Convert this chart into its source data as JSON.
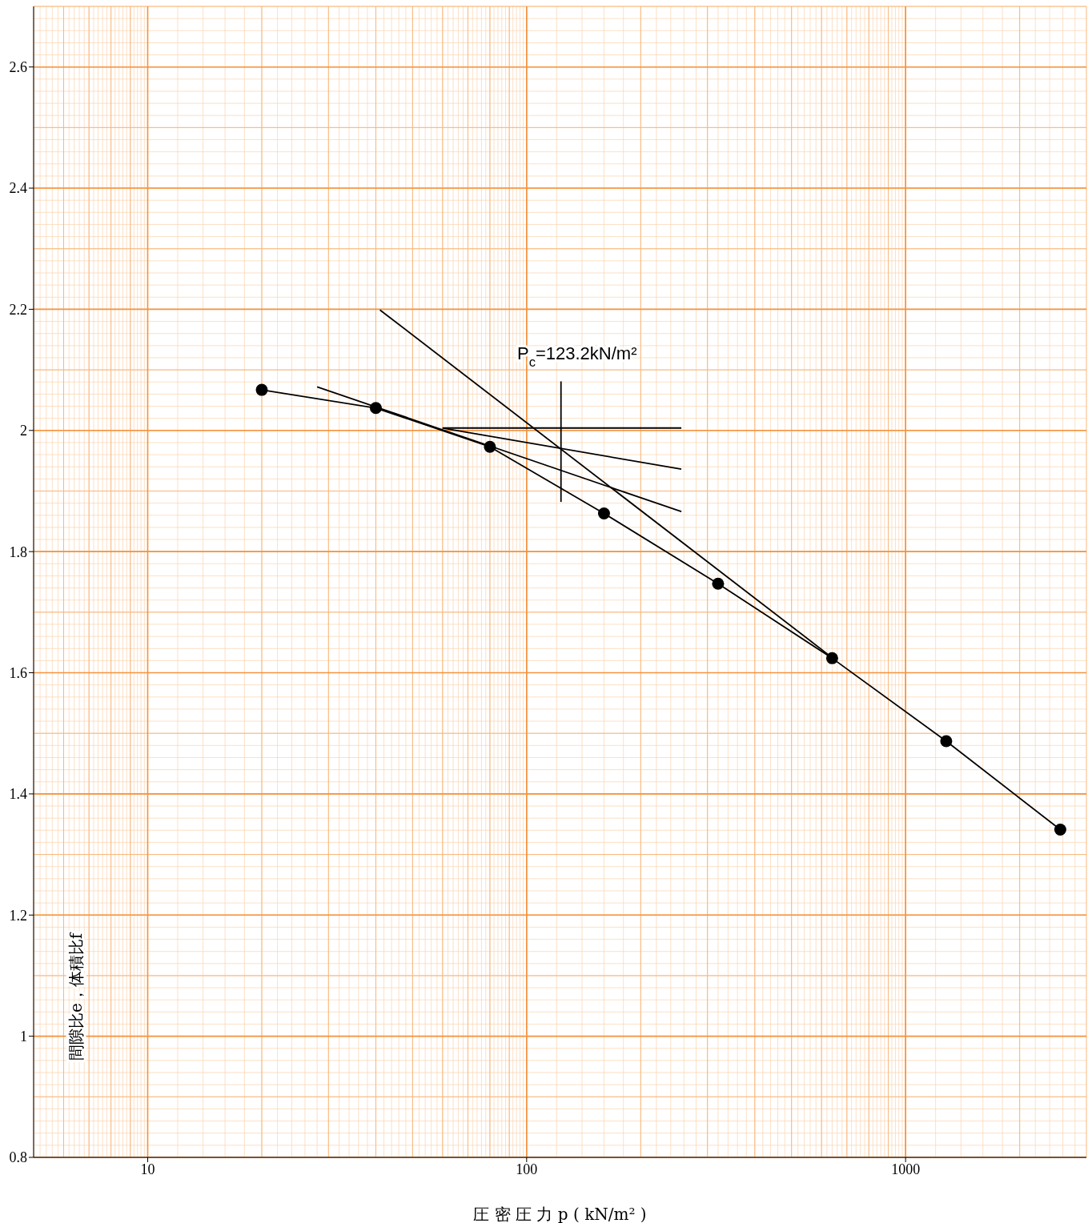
{
  "chart_data": {
    "type": "line",
    "xlabel": "圧 密 圧 力  p  ( kN/m² )",
    "ylabel": "間隙比e，体積比f",
    "log": "x",
    "grid": true,
    "xlim": [
      5,
      3000
    ],
    "xticks": [
      10,
      100,
      1000
    ],
    "ylim": [
      0.8,
      2.7
    ],
    "yticks": [
      0.8,
      1,
      1.2,
      1.4,
      1.6,
      1.8,
      2,
      2.2,
      2.4,
      2.6
    ],
    "annotations": [
      "P$_{c}$=123.2kN/m²"
    ],
    "series": [
      {
        "color": "#000000",
        "marker": "circle",
        "x": [
          20,
          40,
          80,
          160,
          320,
          640,
          1280,
          2560
        ],
        "values": [
          2.067,
          2.037,
          1.973,
          1.863,
          1.747,
          1.624,
          1.487,
          1.341
        ]
      },
      {
        "color": "#000000",
        "marker": "none",
        "x": [
          41,
          640
        ],
        "values": [
          2.199,
          1.625
        ]
      },
      {
        "color": "#000000",
        "marker": "none",
        "x": [
          28,
          256
        ],
        "values": [
          2.072,
          1.866
        ]
      },
      {
        "color": "#000000",
        "marker": "none",
        "x": [
          60,
          256
        ],
        "values": [
          2.004,
          2.004
        ]
      },
      {
        "color": "#000000",
        "marker": "none",
        "x": [
          60,
          256
        ],
        "values": [
          2.004,
          1.936
        ]
      },
      {
        "color": "#000000",
        "marker": "none",
        "x": [
          123.2,
          123.2
        ],
        "values": [
          2.081,
          1.882
        ]
      }
    ]
  }
}
